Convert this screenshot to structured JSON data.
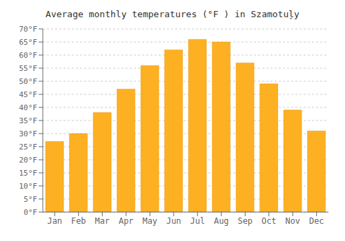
{
  "chart_data": {
    "type": "bar",
    "title": "Average monthly temperatures (°F ) in Szamotuļy",
    "categories": [
      "Jan",
      "Feb",
      "Mar",
      "Apr",
      "May",
      "Jun",
      "Jul",
      "Aug",
      "Sep",
      "Oct",
      "Nov",
      "Dec"
    ],
    "values": [
      27,
      30,
      38,
      47,
      56,
      62,
      66,
      65,
      57,
      49,
      39,
      31
    ],
    "color": "#FDB022",
    "ylim": [
      0,
      70
    ],
    "yticks": [
      {
        "value": 0,
        "label": "0°F"
      },
      {
        "value": 5,
        "label": "5°F"
      },
      {
        "value": 10,
        "label": "10°F"
      },
      {
        "value": 15,
        "label": "15°F"
      },
      {
        "value": 20,
        "label": "20°F"
      },
      {
        "value": 25,
        "label": "25°F"
      },
      {
        "value": 30,
        "label": "30°F"
      },
      {
        "value": 35,
        "label": "35°F"
      },
      {
        "value": 40,
        "label": "40°F"
      },
      {
        "value": 45,
        "label": "45°F"
      },
      {
        "value": 50,
        "label": "50°F"
      },
      {
        "value": 55,
        "label": "55°F"
      },
      {
        "value": 60,
        "label": "60°F"
      },
      {
        "value": 65,
        "label": "65°F"
      },
      {
        "value": 70,
        "label": "70°F"
      }
    ],
    "grid": true
  }
}
